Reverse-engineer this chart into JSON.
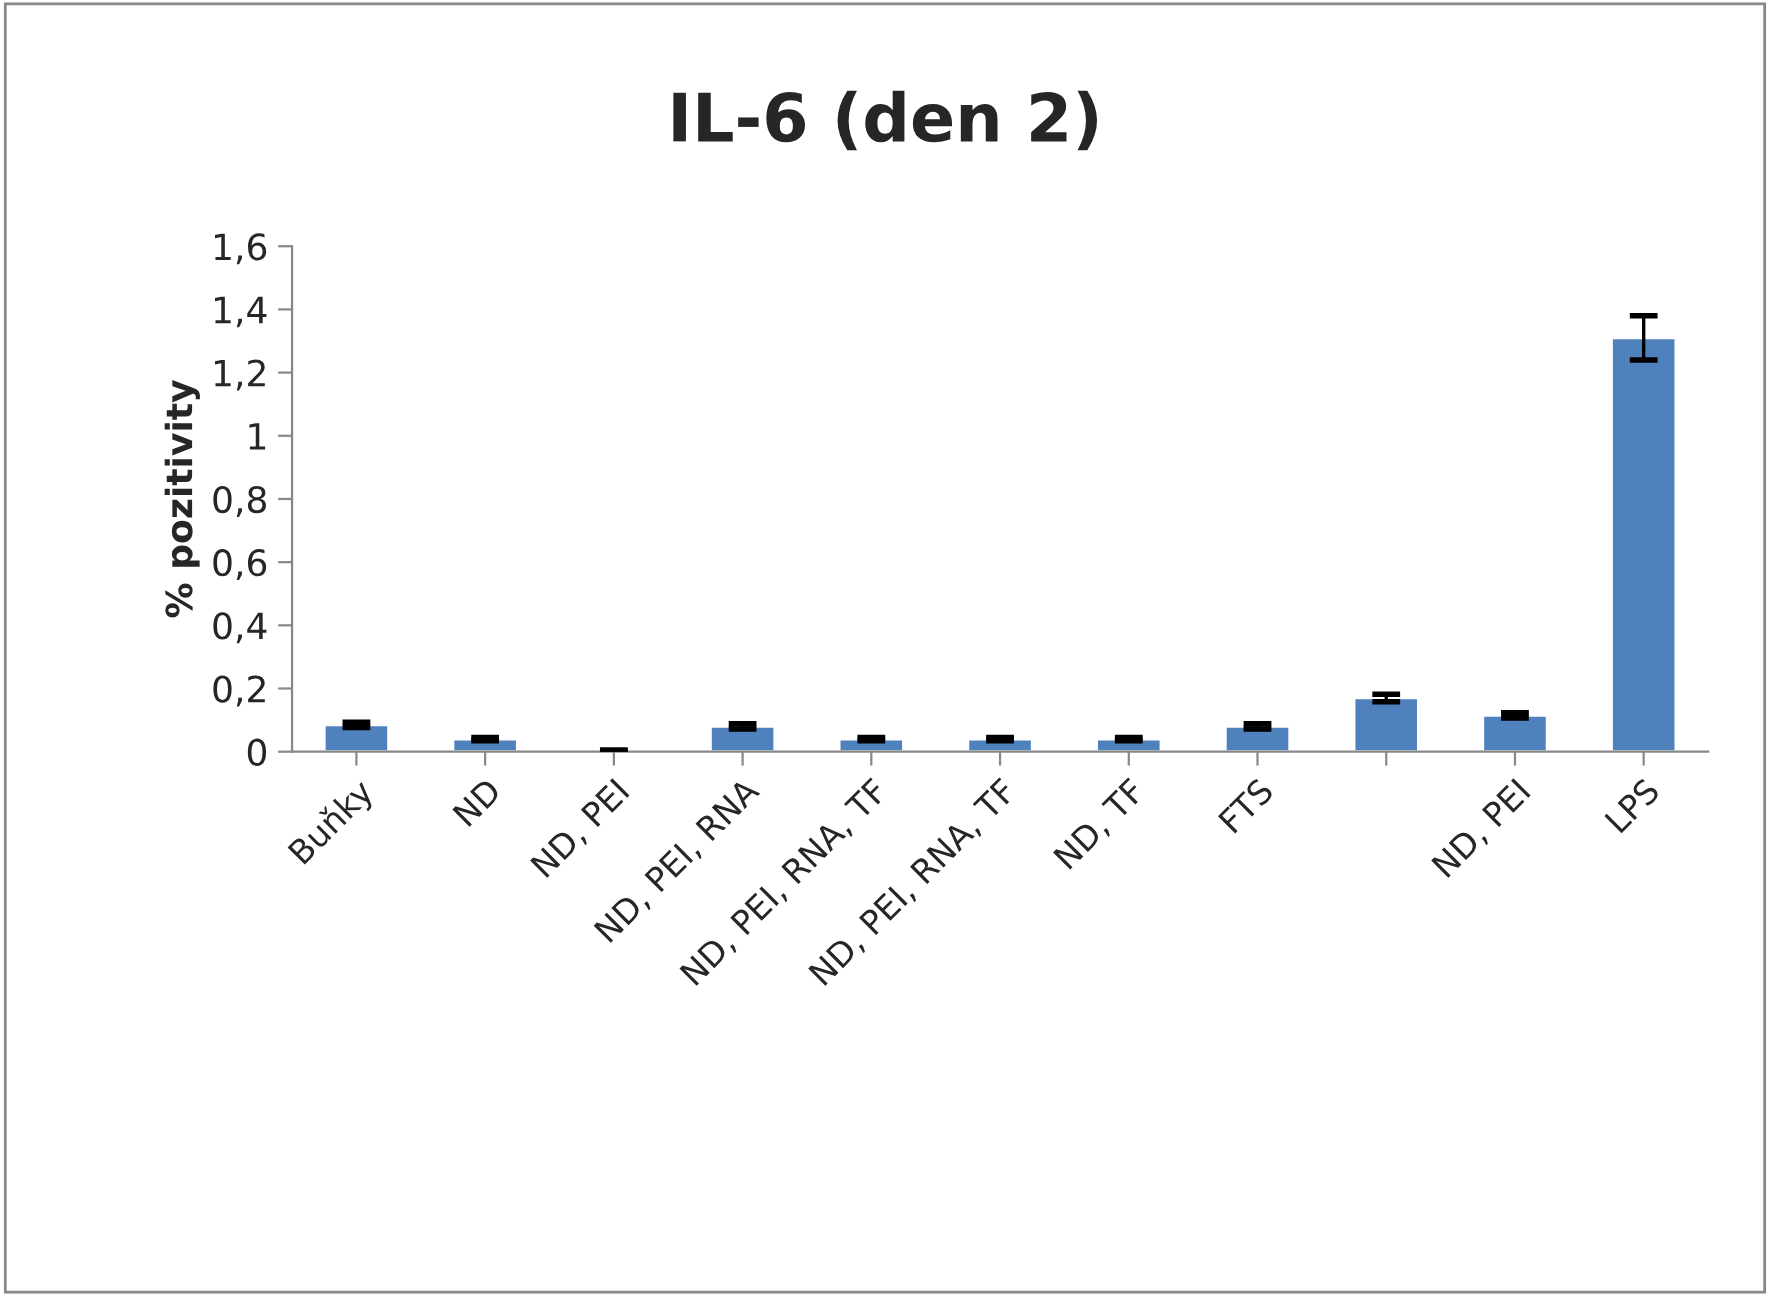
{
  "chart_data": {
    "type": "bar",
    "title": "IL-6 (den 2)",
    "ylabel": "% pozitivity",
    "categories": [
      "Buňky",
      "ND",
      "ND, PEI",
      "ND, PEI, RNA",
      "ND, PEI, RNA, TF",
      "ND, PEI, RNA, TF",
      "ND, TF",
      "FTS",
      null,
      "ND, PEI",
      "LPS"
    ],
    "values": [
      0.085,
      0.04,
      0.003,
      0.08,
      0.04,
      0.04,
      0.04,
      0.08,
      0.17,
      0.115,
      1.31
    ],
    "errors": [
      0.008,
      0.005,
      0.002,
      0.008,
      0.005,
      0.005,
      0.005,
      0.008,
      0.012,
      0.008,
      0.07
    ],
    "color": "#4f81bd",
    "ylim": [
      0,
      1.6
    ],
    "yticks": [
      0,
      {
        "value": 0.2,
        "label": "0,2"
      },
      {
        "value": 0.4,
        "label": "0,4"
      },
      {
        "value": 0.6,
        "label": "0,6"
      },
      {
        "value": 0.8,
        "label": "0,8"
      },
      1,
      {
        "value": 1.2,
        "label": "1,2"
      },
      {
        "value": 1.4,
        "label": "1,4"
      },
      {
        "value": 1.6,
        "label": "1,6"
      }
    ],
    "grid": false,
    "legend": false
  }
}
